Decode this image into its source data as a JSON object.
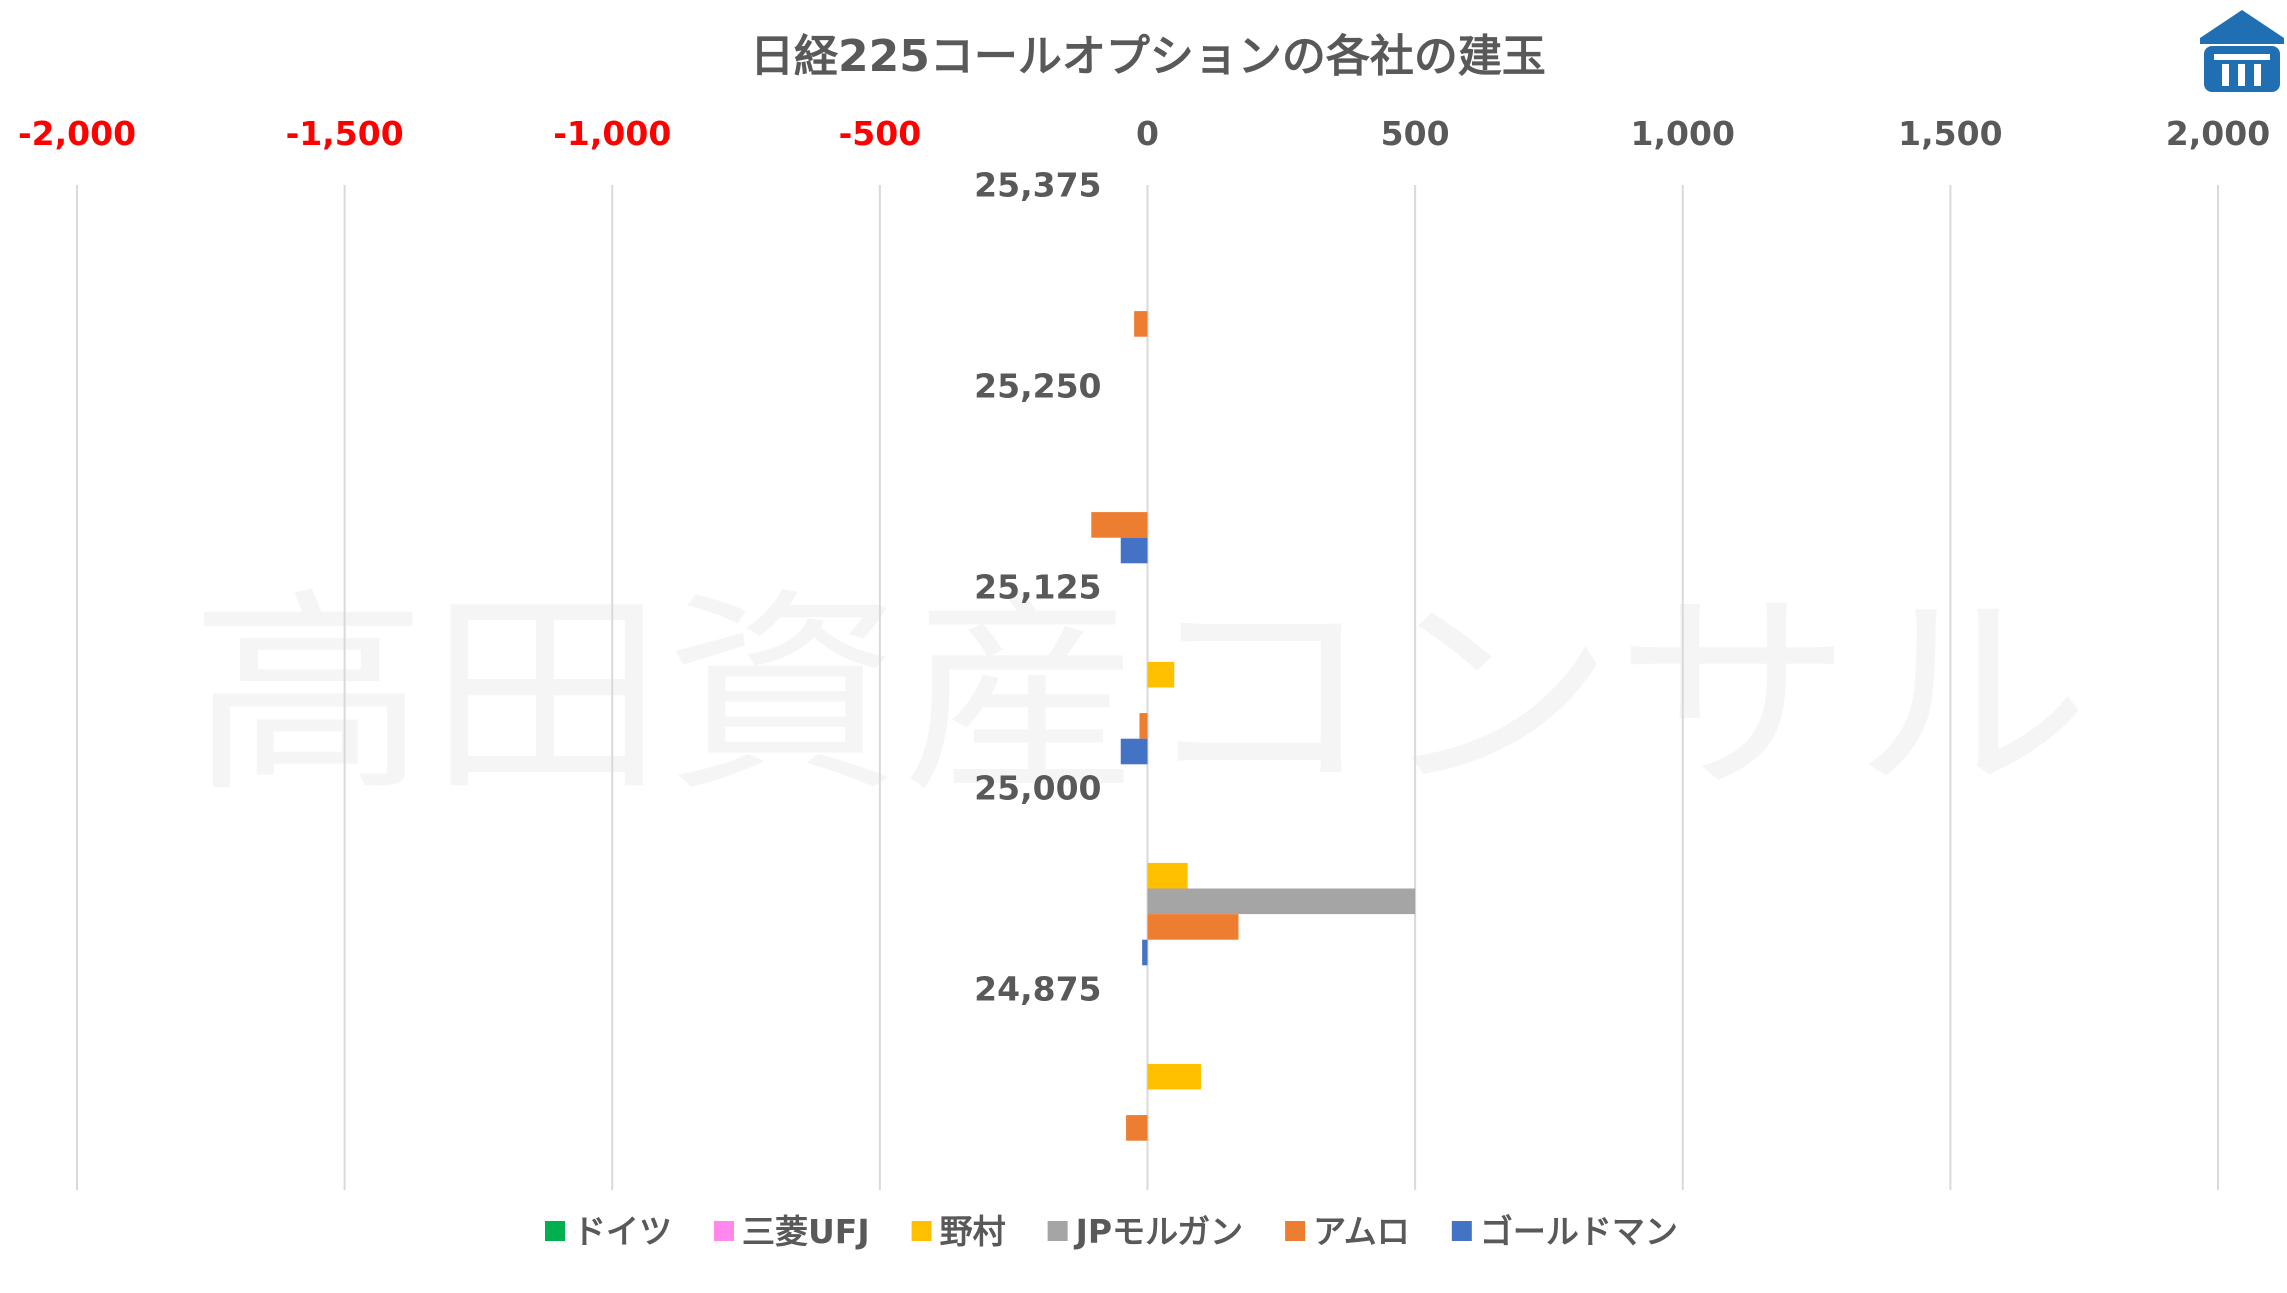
{
  "chart_data": {
    "type": "bar",
    "orientation": "horizontal",
    "title": "日経225コールオプションの各社の建玉",
    "watermark": "高田資産コンサル",
    "xlim": [
      -2000,
      2000
    ],
    "x_ticks": [
      -2000,
      -1500,
      -1000,
      -500,
      0,
      500,
      1000,
      1500,
      2000
    ],
    "x_tick_labels": [
      "-2,000",
      "-1,500",
      "-1,000",
      "-500",
      "0",
      "500",
      "1,000",
      "1,500",
      "2,000"
    ],
    "negative_tick_color": "#ff0000",
    "positive_tick_color": "#595959",
    "grid": "vertical",
    "legend_position": "bottom",
    "categories": [
      "25,375",
      "25,250",
      "25,125",
      "25,000",
      "24,875"
    ],
    "series": [
      {
        "name": "ドイツ",
        "color": "#00b050",
        "values": [
          0,
          0,
          0,
          0,
          0
        ]
      },
      {
        "name": "三菱UFJ",
        "color": "#ff88ee",
        "values": [
          0,
          0,
          0,
          0,
          0
        ]
      },
      {
        "name": "野村",
        "color": "#ffc000",
        "values": [
          0,
          0,
          50,
          75,
          100
        ]
      },
      {
        "name": "JPモルガン",
        "color": "#a5a5a5",
        "values": [
          0,
          0,
          0,
          500,
          0
        ]
      },
      {
        "name": "アムロ",
        "color": "#ed7d31",
        "values": [
          -25,
          -105,
          -15,
          170,
          -40
        ]
      },
      {
        "name": "ゴールドマン",
        "color": "#4472c4",
        "values": [
          0,
          -50,
          -50,
          -10,
          0
        ]
      }
    ]
  },
  "logo": {
    "name": "company-logo",
    "color": "#1f6fb2"
  }
}
